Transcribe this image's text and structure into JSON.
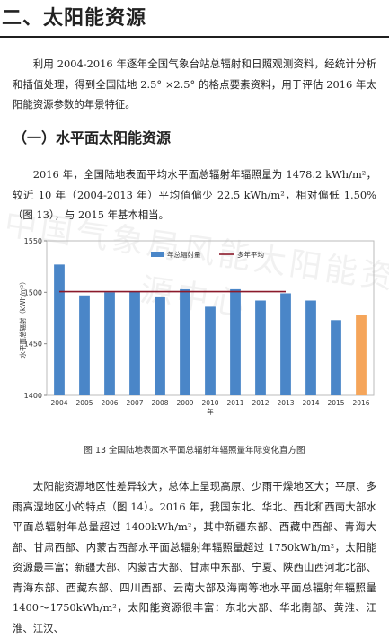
{
  "section_title": "二、太阳能资源",
  "intro": "利用 2004-2016 年逐年全国气象台站总辐射和日照观测资料，经统计分析和插值处理，得到全国陆地 2.5° ×2.5° 的格点要素资料，用于评估 2016 年太阳能资源参数的年景特征。",
  "subsection_title": "（一）水平面太阳能资源",
  "para2": "2016 年，全国陆地表面平均水平面总辐射年辐照量为 1478.2 kWh/m²，较近 10 年（2004-2013 年）平均值偏少 22.5 kWh/m²，相对偏低 1.50%（图 13），与 2015 年基本相当。",
  "caption": "图 13 全国陆地表面水平面总辐射年辐照量年际变化直方图",
  "para3": "太阳能资源地区性差异较大，总体上呈现高原、少雨干燥地区大；平原、多雨高湿地区小的特点（图 14）。2016 年，我国东北、华北、西北和西南大部水平面总辐射年总量超过 1400kWh/m²，其中新疆东部、西藏中西部、青海大部、甘肃西部、内蒙古西部水平面总辐射年辐照量超过 1750kWh/m²，太阳能资源最丰富；新疆大部、内蒙古大部、甘肃中东部、宁夏、陕西山西河北北部、青海东部、西藏东部、四川西部、云南大部及海南等地水平面总辐射年辐照量 1400～1750kWh/m²，太阳能资源很丰富：东北大部、华北南部、黄淮、江淮、江汉、",
  "watermark": "中国气象局风能太阳能资源中心",
  "colors": {
    "bar": "#4a86c8",
    "bar_highlight": "#f5a55a",
    "avg_line": "#8b1a2b"
  },
  "chart_data": {
    "type": "bar",
    "categories": [
      "2004",
      "2005",
      "2006",
      "2007",
      "2008",
      "2009",
      "2010",
      "2011",
      "2012",
      "2013",
      "2014",
      "2015",
      "2016"
    ],
    "series": [
      {
        "name": "年总辐射量",
        "values": [
          1527,
          1497,
          1500,
          1501,
          1496,
          1503,
          1486,
          1503,
          1492,
          1499,
          1492,
          1473,
          1478.2
        ]
      },
      {
        "name": "多年平均",
        "type": "line",
        "x_range": [
          "2004",
          "2013"
        ],
        "value": 1500.7
      }
    ],
    "xlabel": "年",
    "ylabel": "水平面总辐射（kWh/m²）",
    "ylim": [
      1400,
      1550
    ],
    "yticks": [
      1400,
      1450,
      1500,
      1550
    ],
    "legend_position": "top"
  }
}
